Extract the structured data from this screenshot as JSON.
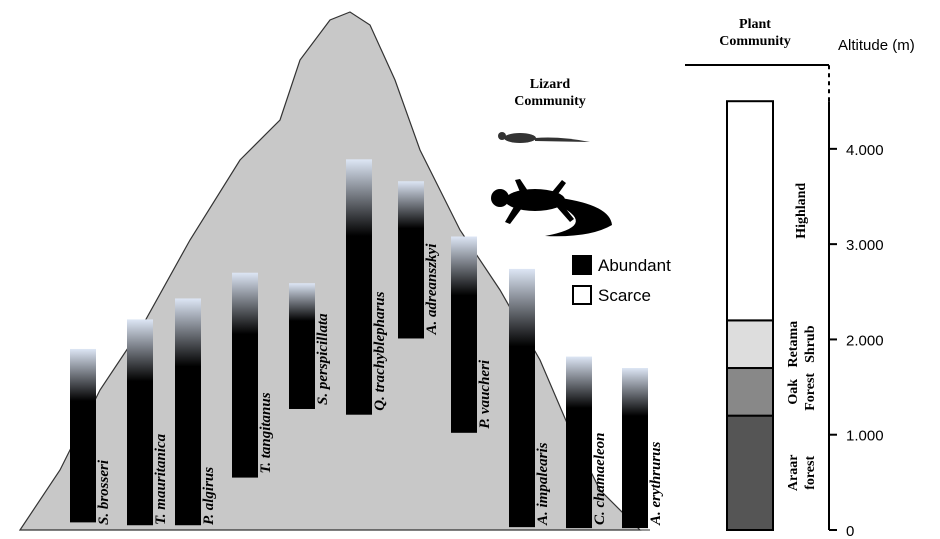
{
  "chart_data": {
    "type": "range-bar",
    "title": [
      "Lizard",
      "Community"
    ],
    "y_label": "Altitude (m)",
    "ylim": [
      0,
      4880
    ],
    "yticks": [
      0,
      {
        "value": 1000,
        "label": "1.000"
      },
      {
        "value": 2000,
        "label": "2.000"
      },
      {
        "value": 3000,
        "label": "3.000"
      },
      {
        "value": 4000,
        "label": "4.000"
      }
    ],
    "legend": [
      {
        "name": "Abundant",
        "color": "#000000"
      },
      {
        "name": "Scarce",
        "color": "#ffffff"
      }
    ],
    "species": [
      {
        "name": "S. brosseri",
        "min": 80,
        "max": 1900
      },
      {
        "name": "T. mauritanica",
        "min": 50,
        "max": 2210
      },
      {
        "name": "P. algirus",
        "min": 50,
        "max": 2430
      },
      {
        "name": "T. tangitanus",
        "min": 550,
        "max": 2700
      },
      {
        "name": "S. perspicillata",
        "min": 1270,
        "max": 2590
      },
      {
        "name": "Q. trachyblepharus",
        "min": 1210,
        "max": 3890
      },
      {
        "name": "A. adreanszkyi",
        "min": 2010,
        "max": 3660
      },
      {
        "name": "P. vaucheri",
        "min": 1020,
        "max": 3080
      },
      {
        "name": "A. impalearis",
        "min": 30,
        "max": 2740
      },
      {
        "name": "C. chamaeleon",
        "min": 20,
        "max": 1820
      },
      {
        "name": "A. erythrurus",
        "min": 20,
        "max": 1700
      }
    ],
    "plant_community": {
      "title": [
        "Plant",
        "Community"
      ],
      "zones": [
        {
          "label": [
            "Araar",
            "forest"
          ],
          "min": 0,
          "max": 1200,
          "color": "#555555"
        },
        {
          "label": [
            "Oak",
            "Forest"
          ],
          "min": 1200,
          "max": 1700,
          "color": "#888888"
        },
        {
          "label": [
            "Retama",
            "Shrub"
          ],
          "min": 1700,
          "max": 2200,
          "color": "#dddddd"
        },
        {
          "label": [
            "Highland"
          ],
          "min": 2200,
          "max": 4500,
          "color": "#ffffff"
        }
      ]
    }
  }
}
